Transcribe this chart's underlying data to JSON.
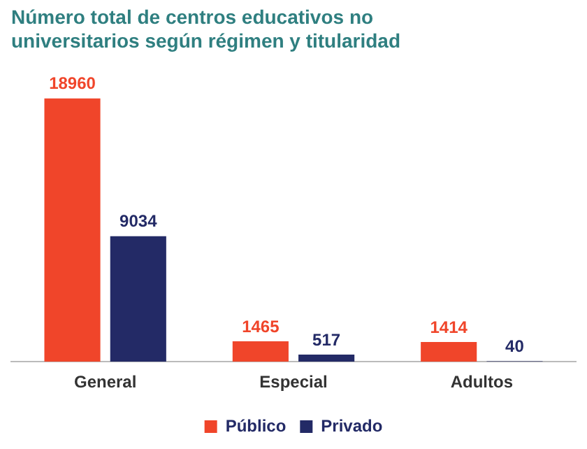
{
  "chart_data": {
    "type": "bar",
    "title": "Número total de centros educativos no universitarios según régimen y titularidad",
    "categories": [
      "General",
      "Especial",
      "Adultos"
    ],
    "series": [
      {
        "name": "Público",
        "color": "#f0452a",
        "values": [
          18960,
          1465,
          1414
        ]
      },
      {
        "name": "Privado",
        "color": "#232a66",
        "values": [
          9034,
          517,
          40
        ]
      }
    ],
    "data_labels": true,
    "legend": "bottom",
    "grid": false
  }
}
